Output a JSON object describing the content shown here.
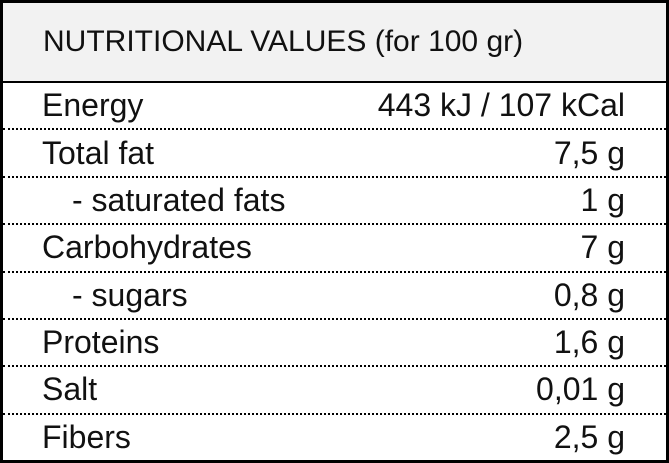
{
  "table": {
    "header": "NUTRITIONAL VALUES (for 100 gr)",
    "rows": [
      [
        "Energy",
        "443 kJ / 107 kCal"
      ],
      [
        "Total fat",
        "7,5 g"
      ],
      [
        "- saturated fats",
        "1 g"
      ],
      [
        "Carbohydrates",
        "7 g"
      ],
      [
        "- sugars",
        "0,8 g"
      ],
      [
        "Proteins",
        "1,6 g"
      ],
      [
        "Salt",
        "0,01 g"
      ],
      [
        "Fibers",
        "2,5 g"
      ]
    ]
  }
}
